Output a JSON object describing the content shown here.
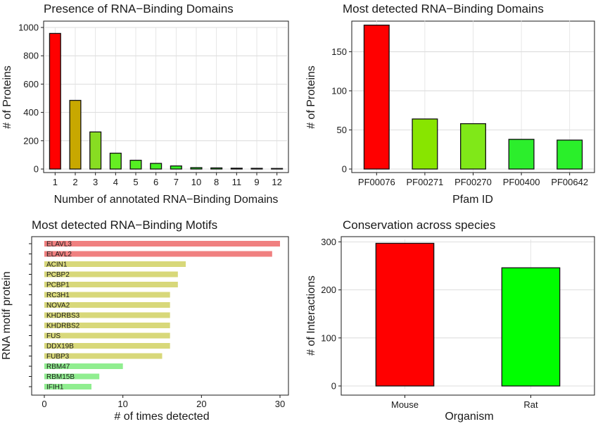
{
  "chart_data": [
    {
      "type": "bar",
      "title": "Presence of RNA−Binding Domains",
      "xlabel": "Number of annotated RNA−Binding Domains",
      "ylabel": "# of Proteins",
      "categories": [
        "1",
        "2",
        "3",
        "4",
        "5",
        "6",
        "7",
        "10",
        "8",
        "11",
        "9",
        "12"
      ],
      "values": [
        958,
        485,
        262,
        112,
        62,
        40,
        22,
        10,
        8,
        6,
        5,
        4
      ],
      "colors": [
        "#ff0000",
        "#c8a800",
        "#88dd22",
        "#66ee22",
        "#55f022",
        "#44f022",
        "#33f022",
        "#22f022",
        "#22f022",
        "#11f022",
        "#11f022",
        "#00ff22"
      ],
      "ylim": [
        0,
        1000
      ],
      "yticks": [
        0,
        200,
        400,
        600,
        800,
        1000
      ],
      "grid": true
    },
    {
      "type": "bar",
      "title": "Most detected RNA−Binding Domains",
      "xlabel": "Pfam ID",
      "ylabel": "# of Proteins",
      "categories": [
        "PF00076",
        "PF00271",
        "PF00270",
        "PF00400",
        "PF00642"
      ],
      "values": [
        184,
        64,
        58,
        38,
        37
      ],
      "colors": [
        "#ff0000",
        "#88e500",
        "#80e818",
        "#2cee2c",
        "#2aef2a"
      ],
      "ylim": [
        0,
        190
      ],
      "yticks": [
        0,
        50,
        100,
        150
      ],
      "grid": true
    },
    {
      "type": "bar",
      "orientation": "horizontal",
      "title": "Most detected RNA−Binding Motifs",
      "xlabel": "# of times detected",
      "ylabel": "RNA motif protein",
      "categories": [
        "ELAVL3",
        "ELAVL2",
        "ACIN1",
        "PCBP2",
        "PCBP1",
        "RC3H1",
        "NOVA2",
        "KHDRBS3",
        "KHDRBS2",
        "FUS",
        "DDX19B",
        "FUBP3",
        "RBM47",
        "RBM15B",
        "IFIH1"
      ],
      "values": [
        30,
        29,
        18,
        17,
        17,
        16,
        16,
        16,
        16,
        16,
        16,
        15,
        10,
        7,
        6
      ],
      "colors": [
        "#f08080",
        "#f08080",
        "#d8d87a",
        "#d8d87a",
        "#d8d87a",
        "#d8d87a",
        "#d8d87a",
        "#d8d87a",
        "#d8d87a",
        "#d8d87a",
        "#d8d87a",
        "#d8d87a",
        "#90ee90",
        "#90ee90",
        "#90ee90"
      ],
      "xlim": [
        0,
        30
      ],
      "xticks": [
        0,
        10,
        20,
        30
      ],
      "grid": false
    },
    {
      "type": "bar",
      "title": "Conservation across species",
      "xlabel": "Organism",
      "ylabel": "# of Interactions",
      "categories": [
        "Mouse",
        "Rat"
      ],
      "values": [
        297,
        246
      ],
      "colors": [
        "#ff0000",
        "#00ff00"
      ],
      "ylim": [
        0,
        305
      ],
      "yticks": [
        0,
        100,
        200,
        300
      ],
      "grid": true
    }
  ]
}
